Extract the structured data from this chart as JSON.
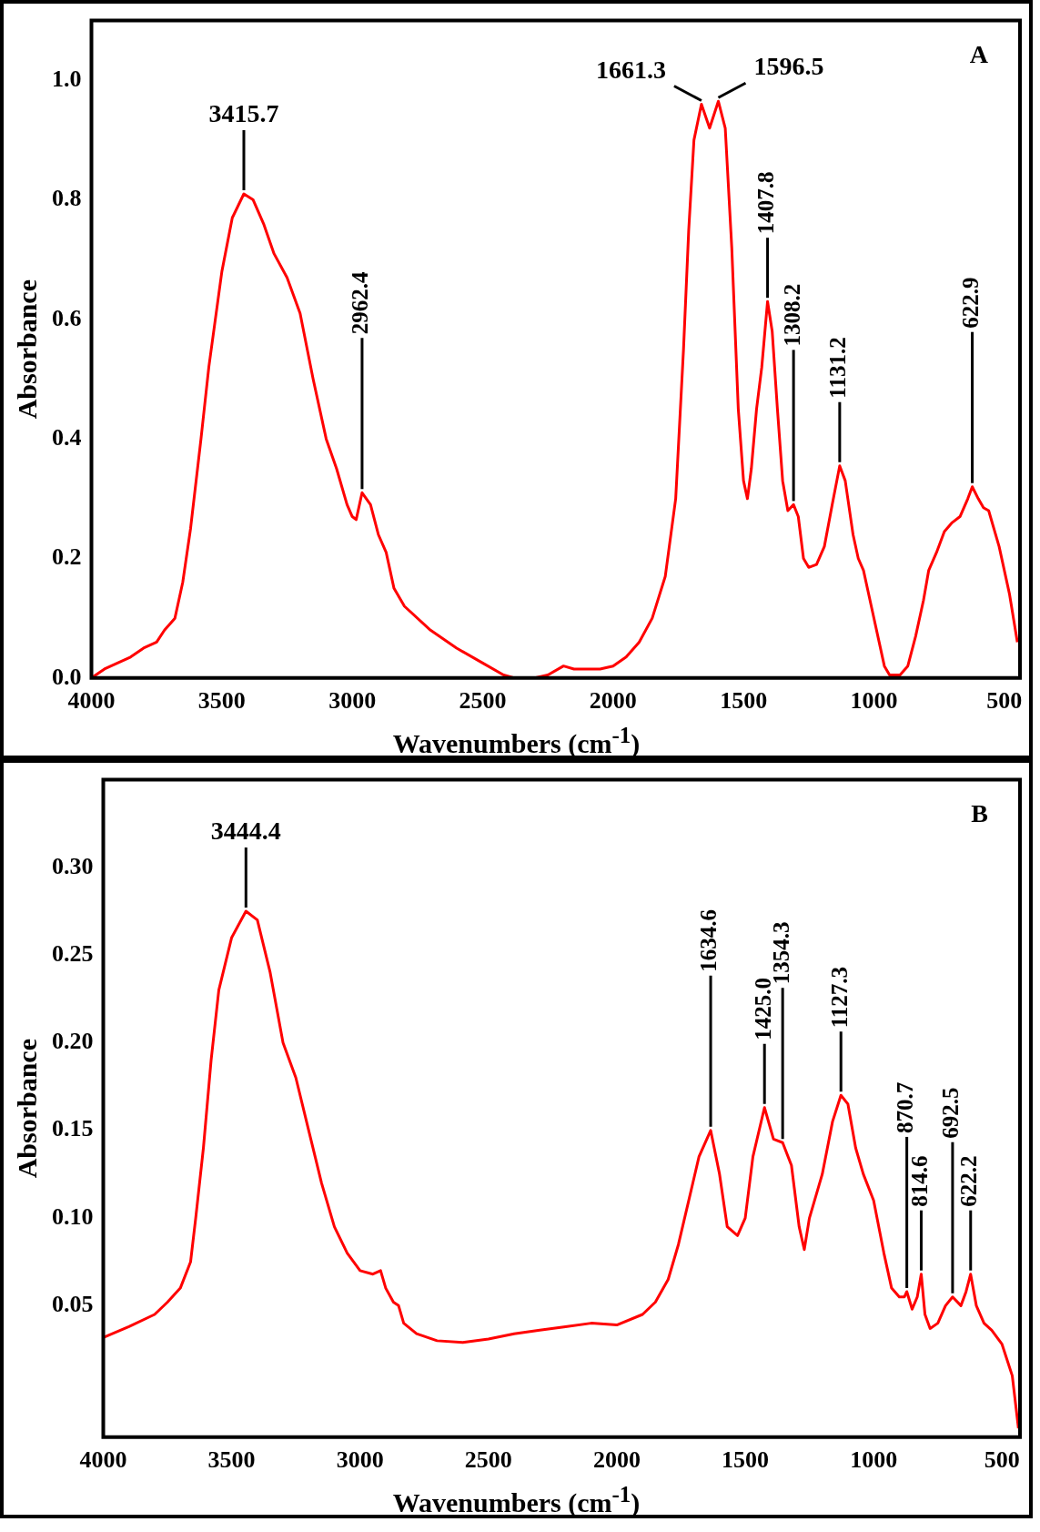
{
  "chart_data": [
    {
      "type": "line",
      "xlabel": "Wavenumbers (cm$^{-1}$)",
      "ylabel": "Absorbance",
      "annotations": [
        "A",
        {
          "text": "3415.7",
          "x": 3415.7,
          "y": 0.81
        },
        {
          "text": "2962.4",
          "x": 2962.4,
          "y": 0.31
        },
        {
          "text": "1661.3",
          "x": 1661.3,
          "y": 0.96
        },
        {
          "text": "1596.5",
          "x": 1596.5,
          "y": 0.965
        },
        {
          "text": "1407.8",
          "x": 1407.8,
          "y": 0.63
        },
        {
          "text": "1308.2",
          "x": 1308.2,
          "y": 0.29
        },
        {
          "text": "1131.2",
          "x": 1131.2,
          "y": 0.355
        },
        {
          "text": "622.9",
          "x": 622.9,
          "y": 0.32
        }
      ],
      "x": [
        4000,
        3950,
        3850,
        3800,
        3750,
        3720,
        3680,
        3650,
        3620,
        3580,
        3550,
        3500,
        3460,
        3415.7,
        3380,
        3340,
        3300,
        3250,
        3200,
        3150,
        3100,
        3060,
        3020,
        3000,
        2985,
        2962.4,
        2930,
        2900,
        2870,
        2840,
        2800,
        2700,
        2600,
        2500,
        2420,
        2380,
        2300,
        2250,
        2190,
        2150,
        2050,
        2000,
        1950,
        1900,
        1850,
        1800,
        1760,
        1730,
        1710,
        1690,
        1661.3,
        1630,
        1596.5,
        1570,
        1545,
        1520,
        1500,
        1485,
        1470,
        1450,
        1430,
        1407.8,
        1390,
        1370,
        1350,
        1330,
        1308.2,
        1290,
        1270,
        1250,
        1220,
        1190,
        1160,
        1131.2,
        1110,
        1080,
        1060,
        1040,
        1010,
        980,
        960,
        940,
        900,
        870,
        840,
        810,
        790,
        760,
        730,
        700,
        670,
        640,
        622.9,
        600,
        580,
        560,
        520,
        480,
        450
      ],
      "series": [
        {
          "color": "#ff0000",
          "values": [
            0.0,
            0.015,
            0.035,
            0.05,
            0.06,
            0.08,
            0.1,
            0.16,
            0.25,
            0.4,
            0.52,
            0.68,
            0.77,
            0.81,
            0.8,
            0.76,
            0.71,
            0.67,
            0.61,
            0.5,
            0.4,
            0.35,
            0.29,
            0.27,
            0.265,
            0.31,
            0.29,
            0.24,
            0.21,
            0.15,
            0.12,
            0.08,
            0.05,
            0.025,
            0.005,
            0.0,
            0.0,
            0.005,
            0.02,
            0.015,
            0.015,
            0.02,
            0.035,
            0.06,
            0.1,
            0.17,
            0.3,
            0.55,
            0.75,
            0.9,
            0.96,
            0.92,
            0.965,
            0.92,
            0.72,
            0.45,
            0.33,
            0.3,
            0.35,
            0.45,
            0.52,
            0.63,
            0.58,
            0.45,
            0.33,
            0.28,
            0.29,
            0.27,
            0.2,
            0.185,
            0.19,
            0.22,
            0.29,
            0.355,
            0.33,
            0.24,
            0.2,
            0.18,
            0.12,
            0.06,
            0.02,
            0.005,
            0.005,
            0.02,
            0.07,
            0.13,
            0.18,
            0.21,
            0.245,
            0.26,
            0.27,
            0.3,
            0.32,
            0.3,
            0.285,
            0.28,
            0.22,
            0.14,
            0.06
          ]
        }
      ],
      "xlim": [
        4000,
        440
      ],
      "xticks": [
        4000,
        3500,
        3000,
        2500,
        2000,
        1500,
        1000,
        500
      ],
      "ylim": [
        0,
        1.1
      ],
      "yticks": [
        {
          "value": 0,
          "label": "0.0"
        },
        {
          "value": 0.2,
          "label": "0.2"
        },
        {
          "value": 0.4,
          "label": "0.4"
        },
        {
          "value": 0.6,
          "label": "0.6"
        },
        {
          "value": 0.8,
          "label": "0.8"
        },
        {
          "value": 1,
          "label": "1.0"
        }
      ]
    },
    {
      "type": "line",
      "xlabel": "Wavenumbers (cm$^{-1}$)",
      "ylabel": "Absorbance",
      "annotations": [
        "B",
        {
          "text": "3444.4",
          "x": 3444.4,
          "y": 0.275
        },
        {
          "text": "1634.6",
          "x": 1634.6,
          "y": 0.15
        },
        {
          "text": "1425.0",
          "x": 1425.0,
          "y": 0.163
        },
        {
          "text": "1354.3",
          "x": 1354.3,
          "y": 0.143
        },
        {
          "text": "1127.3",
          "x": 1127.3,
          "y": 0.17
        },
        {
          "text": "870.7",
          "x": 870.7,
          "y": 0.058
        },
        {
          "text": "814.6",
          "x": 814.6,
          "y": 0.068
        },
        {
          "text": "692.5",
          "x": 692.5,
          "y": 0.055
        },
        {
          "text": "622.2",
          "x": 622.2,
          "y": 0.068
        }
      ],
      "x": [
        3998,
        3900,
        3800,
        3750,
        3700,
        3660,
        3640,
        3610,
        3580,
        3550,
        3500,
        3444.4,
        3400,
        3350,
        3300,
        3250,
        3200,
        3150,
        3100,
        3050,
        3000,
        2950,
        2920,
        2900,
        2870,
        2850,
        2830,
        2780,
        2700,
        2600,
        2500,
        2400,
        2300,
        2200,
        2100,
        2000,
        1900,
        1850,
        1800,
        1760,
        1720,
        1680,
        1634.6,
        1600,
        1570,
        1530,
        1500,
        1470,
        1425.0,
        1390,
        1354.3,
        1320,
        1290,
        1270,
        1250,
        1200,
        1160,
        1127.3,
        1100,
        1070,
        1040,
        1000,
        960,
        930,
        900,
        880,
        870.7,
        850,
        830,
        814.6,
        800,
        780,
        750,
        720,
        692.5,
        660,
        640,
        622.2,
        600,
        570,
        540,
        500,
        460,
        436
      ],
      "series": [
        {
          "color": "#ff0000",
          "values": [
            0.032,
            0.038,
            0.045,
            0.052,
            0.06,
            0.075,
            0.1,
            0.14,
            0.19,
            0.23,
            0.26,
            0.275,
            0.27,
            0.24,
            0.2,
            0.18,
            0.15,
            0.12,
            0.095,
            0.08,
            0.07,
            0.068,
            0.07,
            0.06,
            0.052,
            0.05,
            0.04,
            0.034,
            0.03,
            0.029,
            0.031,
            0.034,
            0.036,
            0.038,
            0.04,
            0.039,
            0.045,
            0.052,
            0.065,
            0.085,
            0.11,
            0.135,
            0.15,
            0.125,
            0.095,
            0.09,
            0.1,
            0.135,
            0.163,
            0.145,
            0.143,
            0.13,
            0.095,
            0.082,
            0.1,
            0.125,
            0.155,
            0.17,
            0.165,
            0.14,
            0.125,
            0.11,
            0.08,
            0.06,
            0.055,
            0.055,
            0.058,
            0.048,
            0.055,
            0.068,
            0.045,
            0.037,
            0.04,
            0.05,
            0.055,
            0.05,
            0.058,
            0.068,
            0.05,
            0.04,
            0.036,
            0.028,
            0.01,
            -0.02
          ]
        }
      ],
      "xlim": [
        4000,
        430
      ],
      "xticks": [
        4000,
        3500,
        3000,
        2500,
        2000,
        1500,
        1000,
        500
      ],
      "ylim": [
        -0.025,
        0.35
      ],
      "yticks": [
        {
          "value": 0.05,
          "label": "0.05"
        },
        {
          "value": 0.1,
          "label": "0.10"
        },
        {
          "value": 0.15,
          "label": "0.15"
        },
        {
          "value": 0.2,
          "label": "0.20"
        },
        {
          "value": 0.25,
          "label": "0.25"
        },
        {
          "value": 0.3,
          "label": "0.30"
        }
      ]
    }
  ]
}
